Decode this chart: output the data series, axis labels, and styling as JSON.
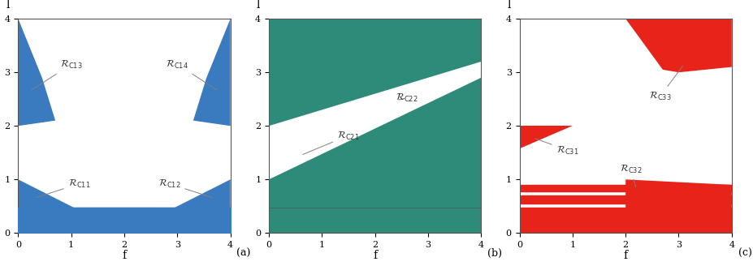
{
  "blue_color": "#3a7bbf",
  "teal_color": "#2e8b7a",
  "red_color": "#e8231a",
  "bg_color": "#ffffff",
  "xlim": [
    0,
    4
  ],
  "ylim": [
    0,
    4
  ],
  "xlabel": "f",
  "ylabel": "l",
  "xticks": [
    0,
    1,
    2,
    3,
    4
  ],
  "yticks": [
    0,
    1,
    2,
    3,
    4
  ],
  "figsize": [
    9.28,
    3.28
  ],
  "dpi": 100,
  "band_y": 0.47,
  "subplot_labels": [
    "(a)",
    "(b)",
    "(c)"
  ]
}
